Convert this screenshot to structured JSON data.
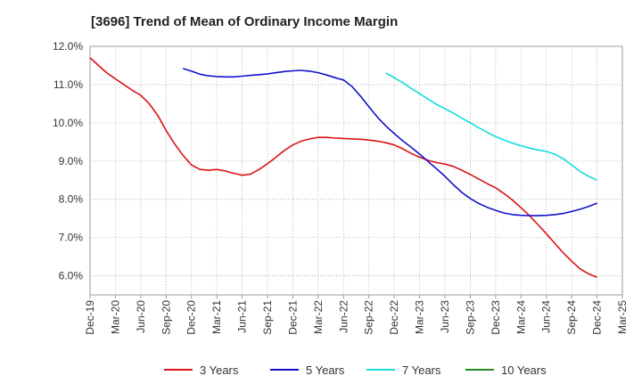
{
  "chart_data": {
    "type": "line",
    "title": "[3696]  Trend of Mean of Ordinary Income Margin",
    "xlabel": "",
    "ylabel": "",
    "ylim": [
      5.5,
      12.0
    ],
    "y_ticks": [
      "6.0%",
      "7.0%",
      "8.0%",
      "9.0%",
      "10.0%",
      "11.0%",
      "12.0%"
    ],
    "y_tick_values": [
      6,
      7,
      8,
      9,
      10,
      11,
      12
    ],
    "x_ticks": [
      "Dec-19",
      "Mar-20",
      "Jun-20",
      "Sep-20",
      "Dec-20",
      "Mar-21",
      "Jun-21",
      "Sep-21",
      "Dec-21",
      "Mar-22",
      "Jun-22",
      "Sep-22",
      "Dec-22",
      "Mar-23",
      "Jun-23",
      "Sep-23",
      "Dec-23",
      "Mar-24",
      "Jun-24",
      "Sep-24",
      "Dec-24",
      "Mar-25"
    ],
    "grid": true,
    "legend_position": "bottom",
    "series": [
      {
        "name": "3 Years",
        "color": "#dd1111",
        "points": [
          [
            "Dec-19",
            11.7
          ],
          [
            "Jan-20",
            11.5
          ],
          [
            "Feb-20",
            11.3
          ],
          [
            "Mar-20",
            11.15
          ],
          [
            "Apr-20",
            11.0
          ],
          [
            "May-20",
            10.85
          ],
          [
            "Jun-20",
            10.72
          ],
          [
            "Jul-20",
            10.5
          ],
          [
            "Aug-20",
            10.2
          ],
          [
            "Sep-20",
            9.8
          ],
          [
            "Oct-20",
            9.45
          ],
          [
            "Nov-20",
            9.15
          ],
          [
            "Dec-20",
            8.9
          ],
          [
            "Jan-21",
            8.78
          ],
          [
            "Feb-21",
            8.76
          ],
          [
            "Mar-21",
            8.78
          ],
          [
            "Apr-21",
            8.74
          ],
          [
            "May-21",
            8.68
          ],
          [
            "Jun-21",
            8.63
          ],
          [
            "Jul-21",
            8.66
          ],
          [
            "Aug-21",
            8.78
          ],
          [
            "Sep-21",
            8.93
          ],
          [
            "Oct-21",
            9.1
          ],
          [
            "Nov-21",
            9.28
          ],
          [
            "Dec-21",
            9.42
          ],
          [
            "Jan-22",
            9.52
          ],
          [
            "Feb-22",
            9.58
          ],
          [
            "Mar-22",
            9.62
          ],
          [
            "Apr-22",
            9.62
          ],
          [
            "May-22",
            9.6
          ],
          [
            "Jun-22",
            9.59
          ],
          [
            "Jul-22",
            9.58
          ],
          [
            "Aug-22",
            9.57
          ],
          [
            "Sep-22",
            9.55
          ],
          [
            "Oct-22",
            9.52
          ],
          [
            "Nov-22",
            9.48
          ],
          [
            "Dec-22",
            9.42
          ],
          [
            "Jan-23",
            9.32
          ],
          [
            "Feb-23",
            9.2
          ],
          [
            "Mar-23",
            9.1
          ],
          [
            "Apr-23",
            9.02
          ],
          [
            "May-23",
            8.96
          ],
          [
            "Jun-23",
            8.92
          ],
          [
            "Jul-23",
            8.86
          ],
          [
            "Aug-23",
            8.76
          ],
          [
            "Sep-23",
            8.65
          ],
          [
            "Oct-23",
            8.53
          ],
          [
            "Nov-23",
            8.41
          ],
          [
            "Dec-23",
            8.3
          ],
          [
            "Jan-24",
            8.15
          ],
          [
            "Feb-24",
            7.98
          ],
          [
            "Mar-24",
            7.78
          ],
          [
            "Apr-24",
            7.57
          ],
          [
            "May-24",
            7.34
          ],
          [
            "Jun-24",
            7.1
          ],
          [
            "Jul-24",
            6.85
          ],
          [
            "Aug-24",
            6.6
          ],
          [
            "Sep-24",
            6.38
          ],
          [
            "Oct-24",
            6.18
          ],
          [
            "Nov-24",
            6.05
          ],
          [
            "Dec-24",
            5.96
          ]
        ]
      },
      {
        "name": "5 Years",
        "color": "#1111cc",
        "points": [
          [
            "Nov-20",
            11.42
          ],
          [
            "Dec-20",
            11.35
          ],
          [
            "Jan-21",
            11.27
          ],
          [
            "Feb-21",
            11.23
          ],
          [
            "Mar-21",
            11.21
          ],
          [
            "Apr-21",
            11.2
          ],
          [
            "May-21",
            11.2
          ],
          [
            "Jun-21",
            11.22
          ],
          [
            "Jul-21",
            11.24
          ],
          [
            "Aug-21",
            11.26
          ],
          [
            "Sep-21",
            11.28
          ],
          [
            "Oct-21",
            11.31
          ],
          [
            "Nov-21",
            11.34
          ],
          [
            "Dec-21",
            11.36
          ],
          [
            "Jan-22",
            11.37
          ],
          [
            "Feb-22",
            11.35
          ],
          [
            "Mar-22",
            11.31
          ],
          [
            "Apr-22",
            11.25
          ],
          [
            "May-22",
            11.18
          ],
          [
            "Jun-22",
            11.12
          ],
          [
            "Jul-22",
            10.95
          ],
          [
            "Aug-22",
            10.7
          ],
          [
            "Sep-22",
            10.42
          ],
          [
            "Oct-22",
            10.15
          ],
          [
            "Nov-22",
            9.92
          ],
          [
            "Dec-22",
            9.72
          ],
          [
            "Jan-23",
            9.53
          ],
          [
            "Feb-23",
            9.36
          ],
          [
            "Mar-23",
            9.18
          ],
          [
            "Apr-23",
            8.99
          ],
          [
            "May-23",
            8.8
          ],
          [
            "Jun-23",
            8.6
          ],
          [
            "Jul-23",
            8.38
          ],
          [
            "Aug-23",
            8.18
          ],
          [
            "Sep-23",
            8.02
          ],
          [
            "Oct-23",
            7.89
          ],
          [
            "Nov-23",
            7.79
          ],
          [
            "Dec-23",
            7.71
          ],
          [
            "Jan-24",
            7.64
          ],
          [
            "Feb-24",
            7.6
          ],
          [
            "Mar-24",
            7.58
          ],
          [
            "Apr-24",
            7.57
          ],
          [
            "May-24",
            7.57
          ],
          [
            "Jun-24",
            7.58
          ],
          [
            "Jul-24",
            7.6
          ],
          [
            "Aug-24",
            7.63
          ],
          [
            "Sep-24",
            7.68
          ],
          [
            "Oct-24",
            7.74
          ],
          [
            "Nov-24",
            7.81
          ],
          [
            "Dec-24",
            7.9
          ]
        ]
      },
      {
        "name": "7 Years",
        "color": "#11dddd",
        "points": [
          [
            "Nov-22",
            11.3
          ],
          [
            "Dec-22",
            11.18
          ],
          [
            "Jan-23",
            11.05
          ],
          [
            "Feb-23",
            10.9
          ],
          [
            "Mar-23",
            10.76
          ],
          [
            "Apr-23",
            10.62
          ],
          [
            "May-23",
            10.48
          ],
          [
            "Jun-23",
            10.37
          ],
          [
            "Jul-23",
            10.25
          ],
          [
            "Aug-23",
            10.12
          ],
          [
            "Sep-23",
            10.0
          ],
          [
            "Oct-23",
            9.87
          ],
          [
            "Nov-23",
            9.75
          ],
          [
            "Dec-23",
            9.64
          ],
          [
            "Jan-24",
            9.55
          ],
          [
            "Feb-24",
            9.47
          ],
          [
            "Mar-24",
            9.4
          ],
          [
            "Apr-24",
            9.34
          ],
          [
            "May-24",
            9.29
          ],
          [
            "Jun-24",
            9.25
          ],
          [
            "Jul-24",
            9.18
          ],
          [
            "Aug-24",
            9.06
          ],
          [
            "Sep-24",
            8.9
          ],
          [
            "Oct-24",
            8.73
          ],
          [
            "Nov-24",
            8.6
          ],
          [
            "Dec-24",
            8.5
          ]
        ]
      },
      {
        "name": "10 Years",
        "color": "#228b22",
        "points": []
      }
    ]
  }
}
